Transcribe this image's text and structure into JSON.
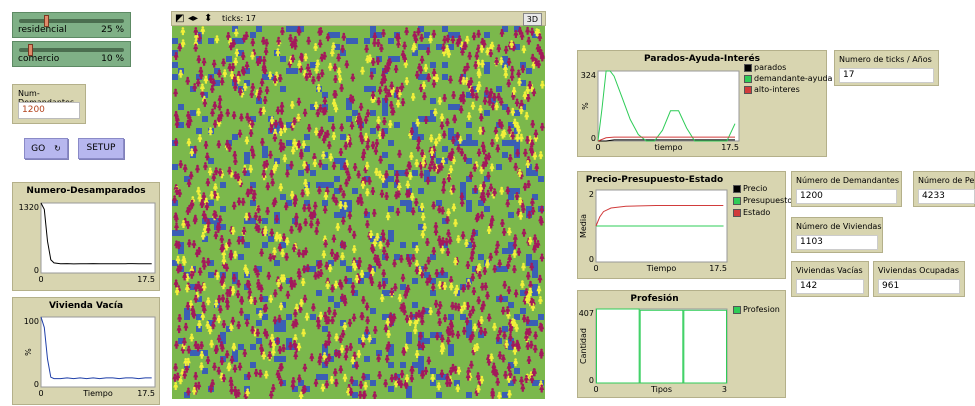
{
  "sliders": [
    {
      "label": "residencial",
      "value": "25 %",
      "level": 25
    },
    {
      "label": "comercio",
      "value": "10 %",
      "level": 10
    }
  ],
  "inputs": {
    "num_demandantes": {
      "title": "Num-Demandantes",
      "value": "1200"
    }
  },
  "buttons": {
    "go": {
      "label": "GO"
    },
    "setup": {
      "label": "SETUP"
    }
  },
  "view": {
    "ticks_label": "ticks: 17",
    "btn_3d": "3D"
  },
  "plots": {
    "desamparados": {
      "title": "Numero-Desamparados",
      "y_max_label": "1320",
      "y_min_label": "0",
      "x_min_label": "0",
      "x_max_label": "17.5",
      "xlabel": "",
      "ylabel": ""
    },
    "vivienda_vacia": {
      "title": "Vivienda Vacía",
      "y_max_label": "100",
      "y_min_label": "0",
      "x_min_label": "0",
      "x_max_label": "17.5",
      "xlabel": "Tiempo",
      "ylabel": "%"
    },
    "parados": {
      "title": "Parados-Ayuda-Interés",
      "y_max_label": "324",
      "y_min_label": "0",
      "x_min_label": "0",
      "x_max_label": "17.5",
      "xlabel": "tiempo",
      "ylabel": "%",
      "legend": [
        "parados",
        "demandante-ayuda",
        "alto-interes"
      ]
    },
    "precio": {
      "title": "Precio-Presupuesto-Estado",
      "y_max_label": "2",
      "y_min_label": "0",
      "x_min_label": "0",
      "x_max_label": "17.5",
      "xlabel": "Tiempo",
      "ylabel": "Media",
      "legend": [
        "Precio",
        "Presupuesto",
        "Estado"
      ]
    },
    "profesion": {
      "title": "Profesión",
      "y_max_label": "407",
      "y_min_label": "0",
      "x_min_label": "0",
      "x_max_label": "3",
      "xlabel": "Tipos",
      "ylabel": "Cantidad",
      "legend": [
        "Profesion"
      ]
    }
  },
  "monitors": {
    "ticks_anios": {
      "title": "Numero de ticks / Años",
      "value": "17"
    },
    "demandantes": {
      "title": "Número de Demandantes",
      "value": "1200"
    },
    "personas": {
      "title": "Número de Per",
      "value": "4233"
    },
    "viviendas": {
      "title": "Número de Viviendas",
      "value": "1103"
    },
    "vacias": {
      "title": "Viviendas Vacías",
      "value": "142"
    },
    "ocupadas": {
      "title": "Viviendas Ocupadas",
      "value": "961"
    }
  },
  "colors": {
    "widget_bg": "#d8d5b0",
    "slider_bg": "#7fb086",
    "button_bg": "#b7b7ee",
    "world_green": "#7bb84c",
    "agent_magenta": "#a3195b",
    "agent_yellow": "#f2f03a",
    "house_blue": "#3a5fb5",
    "series_black": "#000000",
    "series_green": "#2ecc57",
    "series_red": "#d13b3b"
  },
  "chart_data": [
    {
      "type": "line",
      "title": "Numero-Desamparados",
      "xlim": [
        0,
        17.5
      ],
      "ylim": [
        0,
        1320
      ],
      "series": [
        {
          "color": "#000000",
          "x": [
            0,
            0.5,
            1,
            1.5,
            2,
            3,
            4,
            5,
            6,
            7,
            8,
            9,
            10,
            11,
            12,
            13,
            14,
            15,
            16,
            17
          ],
          "values": [
            1320,
            1200,
            600,
            250,
            190,
            175,
            178,
            172,
            176,
            174,
            177,
            173,
            175,
            176,
            174,
            175,
            177,
            174,
            176,
            175
          ]
        }
      ]
    },
    {
      "type": "line",
      "title": "Vivienda Vacía",
      "xlim": [
        0,
        17.5
      ],
      "ylim": [
        0,
        100
      ],
      "series": [
        {
          "color": "#1f3fa8",
          "x": [
            0,
            0.5,
            1,
            1.5,
            2,
            3,
            4,
            5,
            6,
            7,
            8,
            9,
            10,
            11,
            12,
            13,
            14,
            15,
            16,
            17
          ],
          "values": [
            100,
            85,
            40,
            14,
            12,
            12,
            13,
            12,
            13,
            12,
            13,
            12,
            13,
            13,
            12,
            13,
            13,
            12,
            13,
            13
          ]
        }
      ]
    },
    {
      "type": "line",
      "title": "Parados-Ayuda-Interés",
      "xlim": [
        0,
        17.5
      ],
      "ylim": [
        0,
        324
      ],
      "series": [
        {
          "name": "parados",
          "color": "#000000",
          "x": [
            0,
            1,
            2,
            17
          ],
          "values": [
            0,
            0,
            5,
            5
          ]
        },
        {
          "name": "demandante-ayuda",
          "color": "#2ecc57",
          "x": [
            0,
            0.5,
            1,
            1.5,
            2,
            3,
            4,
            5,
            6,
            6.5,
            7,
            8,
            9,
            10,
            11,
            12,
            13,
            14,
            15,
            16,
            17
          ],
          "values": [
            0,
            150,
            324,
            324,
            300,
            200,
            100,
            30,
            0,
            0,
            0,
            50,
            140,
            140,
            60,
            0,
            0,
            0,
            0,
            0,
            80
          ]
        },
        {
          "name": "alto-interes",
          "color": "#d13b3b",
          "x": [
            0,
            1,
            2,
            17
          ],
          "values": [
            0,
            15,
            18,
            18
          ]
        }
      ]
    },
    {
      "type": "line",
      "title": "Precio-Presupuesto-Estado",
      "xlim": [
        0,
        17.5
      ],
      "ylim": [
        0,
        2
      ],
      "series": [
        {
          "name": "Precio",
          "color": "#000000",
          "x": [
            0,
            17
          ],
          "values": [
            1,
            1
          ]
        },
        {
          "name": "Presupuesto",
          "color": "#2ecc57",
          "x": [
            0,
            17
          ],
          "values": [
            1,
            1
          ]
        },
        {
          "name": "Estado",
          "color": "#d13b3b",
          "x": [
            0,
            0.5,
            1,
            2,
            4,
            8,
            17
          ],
          "values": [
            1,
            1.25,
            1.4,
            1.5,
            1.55,
            1.57,
            1.57
          ]
        }
      ]
    },
    {
      "type": "bar",
      "title": "Profesión",
      "xlim": [
        0,
        3
      ],
      "ylim": [
        0,
        407
      ],
      "categories": [
        "0",
        "1",
        "2"
      ],
      "series": [
        {
          "name": "Profesion",
          "color": "#2ecc57",
          "values": [
            407,
            400,
            400
          ]
        }
      ]
    }
  ]
}
